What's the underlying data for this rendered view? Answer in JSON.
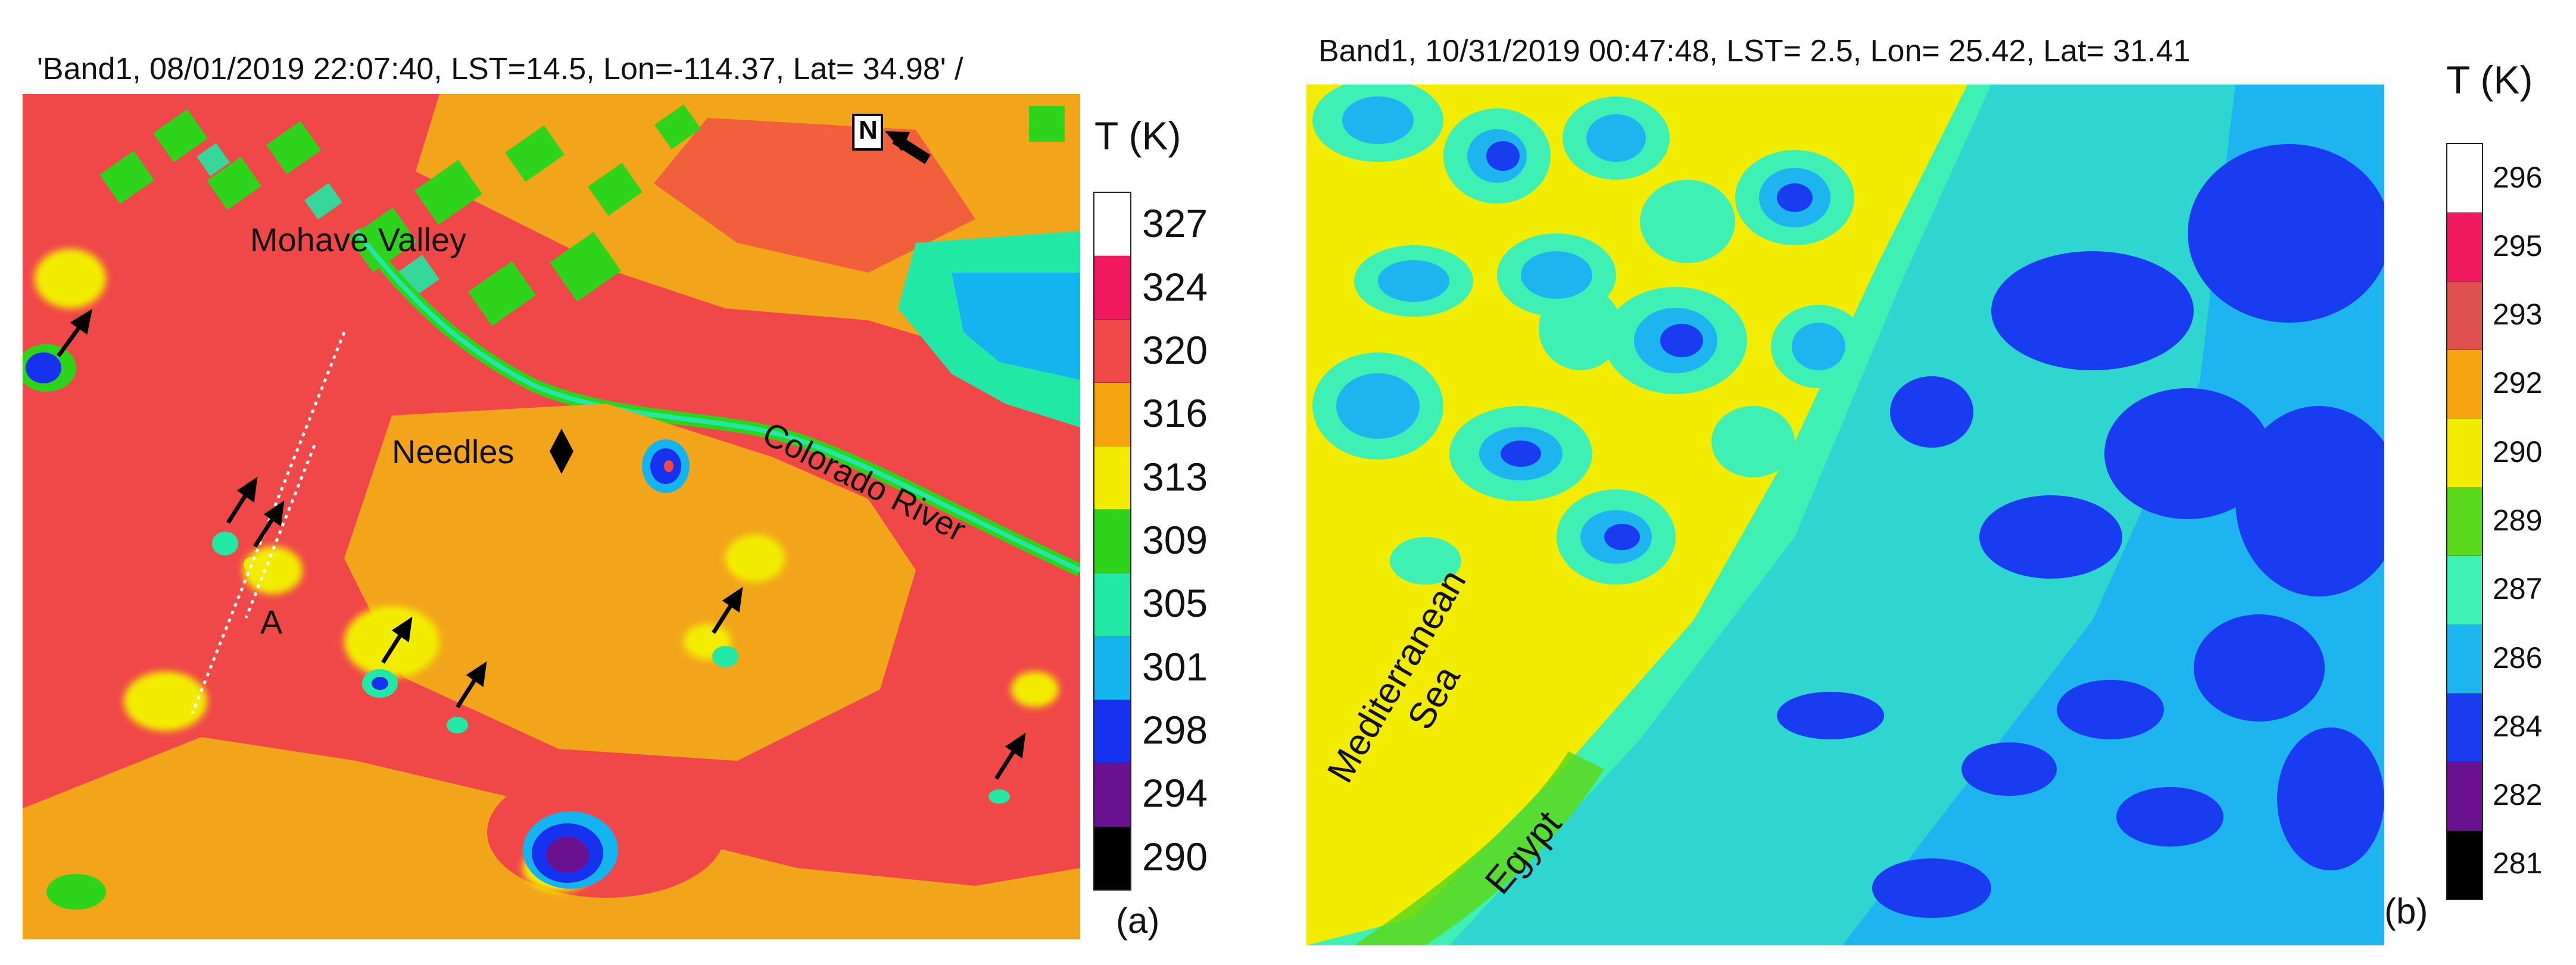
{
  "panel_a": {
    "title": "'Band1, 08/01/2019 22:07:40, LST=14.5, Lon=-114.37, Lat= 34.98' /",
    "labels": {
      "mohave": "Mohave Valley",
      "needles": "Needles",
      "colorado": "Colorado River",
      "a": "A",
      "north": "N"
    },
    "colorbar": {
      "title": "T (K)",
      "ticks": [
        "327",
        "324",
        "320",
        "316",
        "313",
        "309",
        "305",
        "301",
        "298",
        "294",
        "290"
      ],
      "colors": [
        "#ffffff",
        "#f0185e",
        "#f04848",
        "#f5a30f",
        "#f2ed00",
        "#2ed31c",
        "#22e8a6",
        "#14b4ef",
        "#1632ef",
        "#6a1190",
        "#000000"
      ]
    },
    "panel_label": "(a)"
  },
  "panel_b": {
    "title": "Band1, 10/31/2019 00:47:48, LST= 2.5, Lon=  25.42, Lat= 31.41",
    "labels": {
      "sea": "Mediterranean Sea",
      "egypt": "Egypt"
    },
    "colorbar": {
      "title": "T (K)",
      "ticks": [
        "296",
        "295",
        "293",
        "292",
        "290",
        "289",
        "287",
        "286",
        "284",
        "282",
        "281"
      ],
      "colors": [
        "#ffffff",
        "#f0185e",
        "#e05050",
        "#f5a30f",
        "#f2ed00",
        "#5ad81c",
        "#3ef0b4",
        "#1eb4f0",
        "#1a3cf0",
        "#6a1190",
        "#000000"
      ]
    },
    "panel_label": "(b)"
  }
}
